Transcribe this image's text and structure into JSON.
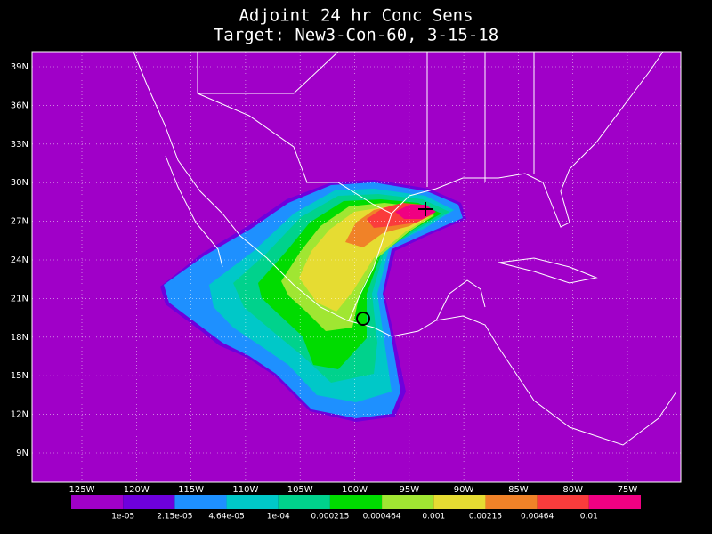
{
  "header": {
    "title": "Adjoint 24 hr Conc Sens",
    "subtitle": "Target: New3-Con-60, 3-15-18"
  },
  "map": {
    "lat_labels": [
      "39N",
      "36N",
      "33N",
      "30N",
      "27N",
      "24N",
      "21N",
      "18N",
      "15N",
      "12N",
      "9N"
    ],
    "lon_labels": [
      "125W",
      "120W",
      "115W",
      "110W",
      "105W",
      "100W",
      "95W",
      "90W",
      "85W",
      "80W",
      "75W"
    ]
  },
  "colorbar": {
    "colors": [
      "#a000c8",
      "#6e00dc",
      "#1e90ff",
      "#00c8c8",
      "#00d28c",
      "#00dc00",
      "#a0e632",
      "#e6dc32",
      "#f08228",
      "#fa3c3c",
      "#f00082"
    ],
    "labels": [
      "1e-05",
      "2.15e-05",
      "4.64e-05",
      "1e-04",
      "0.000215",
      "0.000464",
      "0.001",
      "0.00215",
      "0.00464",
      "0.01"
    ]
  }
}
